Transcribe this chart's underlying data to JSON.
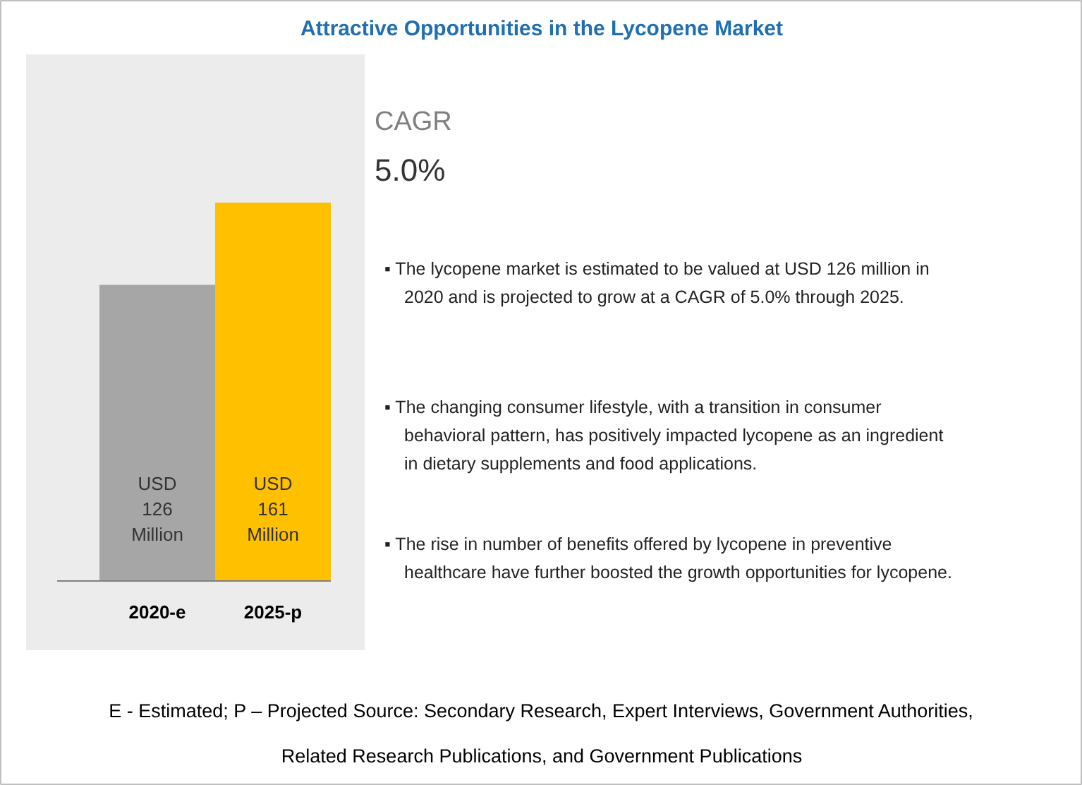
{
  "chart_data": {
    "type": "bar",
    "title": "Attractive Opportunities in the Lycopene Market",
    "categories": [
      "2020-e",
      "2025-p"
    ],
    "values": [
      126,
      161
    ],
    "colors": [
      "#a6a6a6",
      "#ffc000"
    ],
    "value_labels": [
      "USD 126 Million",
      "USD 161 Million"
    ],
    "grid": false,
    "annotations": [
      "CAGR",
      "5.0%",
      "▪ The lycopene market is estimated to be valued at USD 126 million in 2020 and is projected to grow at a CAGR of 5.0% through 2025.",
      "▪ The changing consumer lifestyle, with a transition in consumer behavioral pattern, has positively impacted lycopene as an ingredient in dietary supplements and food applications.",
      "▪ The rise in number of benefits offered by lycopene in preventive healthcare have further boosted the growth opportunities for lycopene.",
      "E - Estimated; P – Projected Source: Secondary Research, Expert Interviews, Government Authorities, Related Research Publications, and Government Publications"
    ]
  }
}
